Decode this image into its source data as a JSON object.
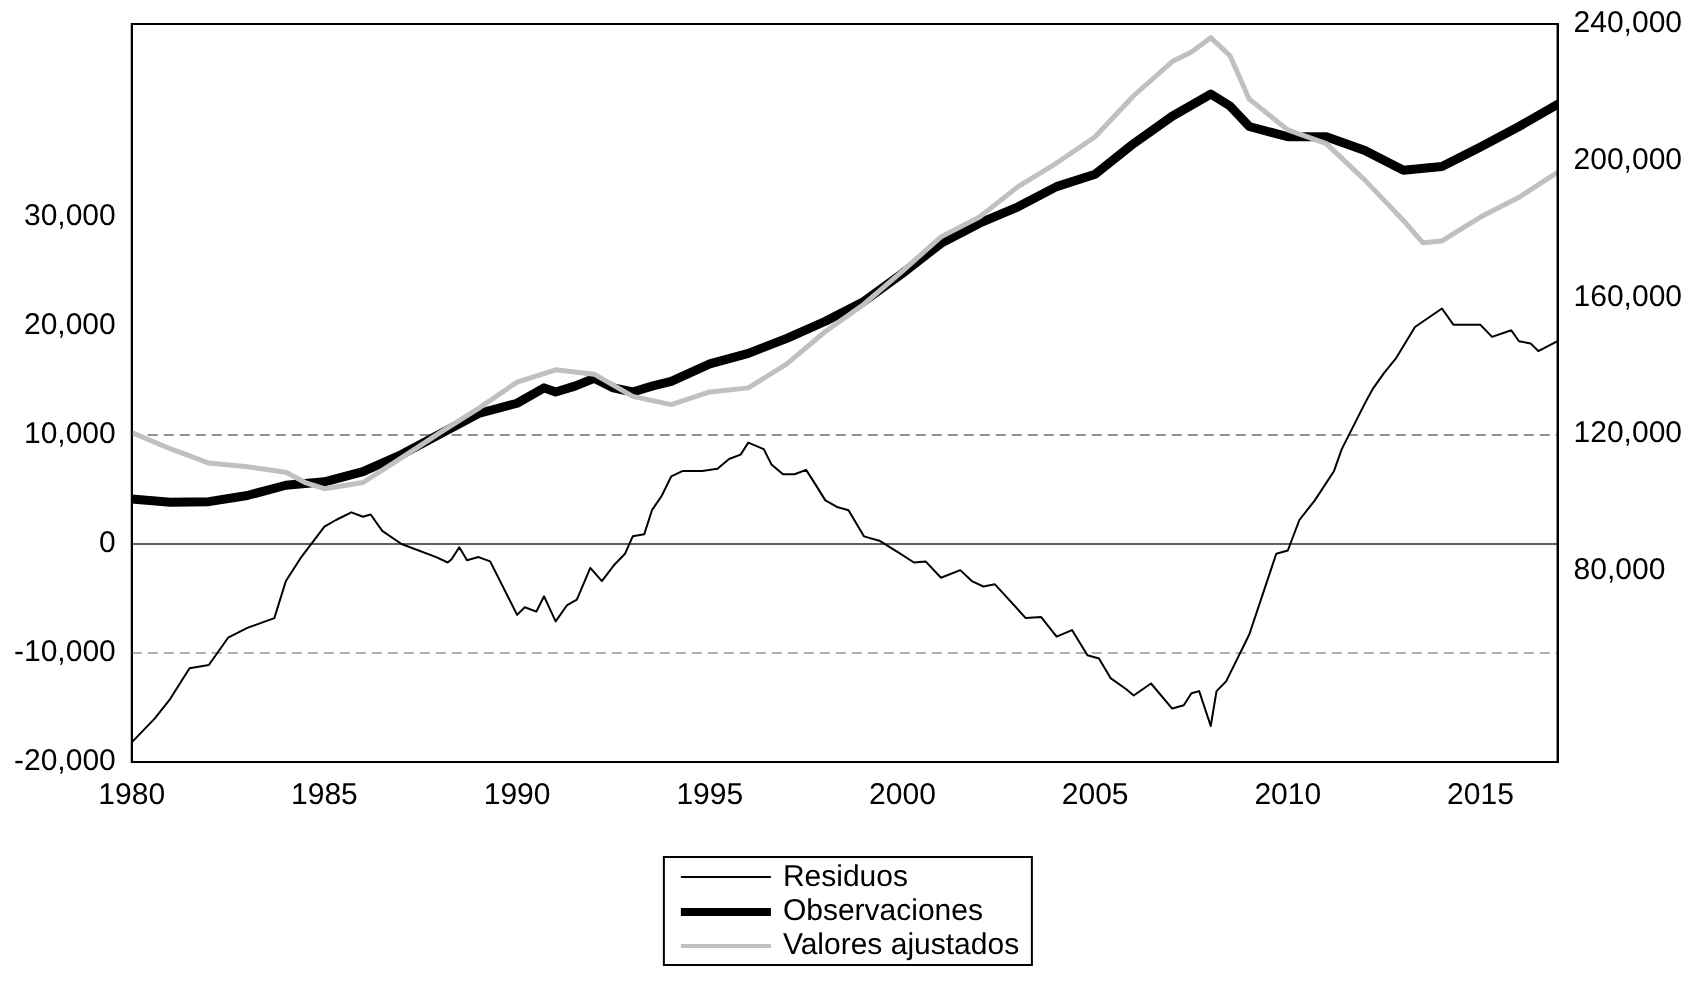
{
  "chart_data": {
    "type": "line",
    "xlim": [
      1980,
      2017
    ],
    "xticks": [
      1980,
      1985,
      1990,
      1995,
      2000,
      2005,
      2010,
      2015
    ],
    "ylim": [
      -20000,
      47700
    ],
    "yticks": [
      {
        "value": -20000,
        "label": "-20,000"
      },
      {
        "value": -10000,
        "label": "-10,000"
      },
      0,
      {
        "value": 10000,
        "label": "10,000"
      },
      {
        "value": 20000,
        "label": "20,000"
      },
      {
        "value": 30000,
        "label": "30,000"
      }
    ],
    "y2lim": [
      24000,
      240000
    ],
    "y2ticks": [
      {
        "value": 80000,
        "label": "80,000"
      },
      {
        "value": 120000,
        "label": "120,000"
      },
      {
        "value": 160000,
        "label": "160,000"
      },
      {
        "value": 200000,
        "label": "200,000"
      },
      {
        "value": 240000,
        "label": "240,000"
      }
    ],
    "grid": false,
    "legend": "bottom",
    "marker": "none",
    "ref_lines": [
      {
        "axis": "y",
        "value": 0,
        "color": "#606060",
        "line_style": "solid"
      },
      {
        "axis": "y",
        "value": 10000,
        "color": "#909090",
        "line_style": "dashed"
      },
      {
        "axis": "y",
        "value": -10000,
        "color": "#b0b0b0",
        "line_style": "dashed"
      }
    ],
    "series": [
      {
        "name": "Residuos",
        "color": "#000000",
        "axis": "y",
        "x": [
          1980,
          1980.6,
          1981,
          1981.5,
          1982,
          1982.5,
          1983,
          1983.7,
          1984,
          1984.4,
          1985,
          1985.3,
          1985.7,
          1986,
          1986.2,
          1986.5,
          1987,
          1987.9,
          1988.2,
          1988.3,
          1988.5,
          1988.7,
          1989,
          1989.3,
          1990,
          1990.2,
          1990.5,
          1990.7,
          1991,
          1991.3,
          1991.55,
          1991.9,
          1992.2,
          1992.5,
          1992.8,
          1993,
          1993.3,
          1993.5,
          1993.75,
          1994,
          1994.3,
          1994.8,
          1995.2,
          1995.5,
          1995.8,
          1996,
          1996.4,
          1996.6,
          1996.9,
          1997.2,
          1997.5,
          1997.7,
          1998,
          1998.3,
          1998.6,
          1999,
          1999.4,
          1999.9,
          2000.3,
          2000.6,
          2001,
          2001.5,
          2001.8,
          2002.1,
          2002.4,
          2003.2,
          2003.6,
          2004,
          2004.4,
          2004.8,
          2005.1,
          2005.4,
          2005.8,
          2006,
          2006.45,
          2007,
          2007.3,
          2007.5,
          2007.7,
          2008,
          2008.15,
          2008.4,
          2009,
          2009.7,
          2010,
          2010.3,
          2010.7,
          2011.2,
          2011.4,
          2012,
          2012.2,
          2012.5,
          2012.8,
          2013.3,
          2014,
          2014.3,
          2015,
          2015.3,
          2015.8,
          2016,
          2016.3,
          2016.5,
          2017
        ],
        "values": [
          -18200,
          -16000,
          -14200,
          -11400,
          -11100,
          -8600,
          -7700,
          -6800,
          -3400,
          -1200,
          1600,
          2200,
          2900,
          2500,
          2700,
          1200,
          0,
          -1200,
          -1700,
          -1400,
          -300,
          -1500,
          -1200,
          -1600,
          -6500,
          -5800,
          -6200,
          -4800,
          -7100,
          -5600,
          -5100,
          -2200,
          -3400,
          -2000,
          -900,
          700,
          900,
          3100,
          4400,
          6200,
          6700,
          6700,
          6900,
          7800,
          8200,
          9300,
          8700,
          7300,
          6400,
          6400,
          6800,
          5700,
          4000,
          3400,
          3100,
          700,
          300,
          -800,
          -1700,
          -1600,
          -3100,
          -2400,
          -3400,
          -3900,
          -3700,
          -6800,
          -6700,
          -8500,
          -7900,
          -10200,
          -10500,
          -12300,
          -13300,
          -13900,
          -12800,
          -15100,
          -14800,
          -13700,
          -13500,
          -16700,
          -13500,
          -12600,
          -8300,
          -900,
          -600,
          2200,
          4000,
          6700,
          8700,
          12900,
          14200,
          15700,
          17000,
          19900,
          21600,
          20100,
          20100,
          19000,
          19600,
          18600,
          18400,
          17700,
          18600
        ]
      },
      {
        "name": "Observaciones",
        "color": "#000000",
        "axis": "y2",
        "x": [
          1980,
          1981,
          1982,
          1983,
          1984,
          1985,
          1986,
          1987,
          1988,
          1989,
          1990,
          1990.7,
          1991,
          1991.5,
          1992,
          1992.5,
          1993,
          1993.5,
          1994,
          1995,
          1996,
          1997,
          1998,
          1999,
          2000,
          2001,
          2002,
          2003,
          2004,
          2005,
          2006,
          2007,
          2008,
          2008.5,
          2009,
          2010,
          2011,
          2012,
          2013,
          2014,
          2015,
          2016,
          2017
        ],
        "values": [
          101000,
          100000,
          100200,
          102000,
          105000,
          106000,
          109000,
          114000,
          120000,
          126000,
          129000,
          133500,
          132300,
          134000,
          136300,
          133500,
          132300,
          134000,
          135400,
          140500,
          143600,
          148000,
          153000,
          158800,
          167000,
          175800,
          181700,
          186500,
          192400,
          196000,
          205000,
          213000,
          219500,
          216000,
          210000,
          207000,
          207000,
          203000,
          197200,
          198300,
          204000,
          210000,
          216500
        ]
      },
      {
        "name": "Valores ajustados",
        "color": "#c0c0c0",
        "axis": "y2",
        "x": [
          1980,
          1981,
          1982,
          1983,
          1984,
          1984.5,
          1985,
          1986,
          1987,
          1988,
          1989,
          1990,
          1991,
          1992,
          1993,
          1994,
          1995,
          1996,
          1997,
          1998,
          1999,
          2000,
          2001,
          2002,
          2003,
          2004,
          2005,
          2006,
          2007,
          2007.5,
          2008,
          2008.5,
          2009,
          2010,
          2011,
          2012,
          2013,
          2013.5,
          2014,
          2015,
          2016,
          2017
        ],
        "values": [
          120400,
          115700,
          111500,
          110400,
          108800,
          105800,
          104000,
          105800,
          113000,
          120400,
          127500,
          135200,
          138800,
          137500,
          131000,
          128600,
          132300,
          133500,
          140500,
          150000,
          158000,
          167700,
          177700,
          183500,
          192400,
          199300,
          207000,
          219000,
          229000,
          231800,
          236000,
          230700,
          218000,
          209000,
          205000,
          194300,
          182500,
          176000,
          176500,
          183500,
          189300,
          196600
        ]
      }
    ]
  }
}
